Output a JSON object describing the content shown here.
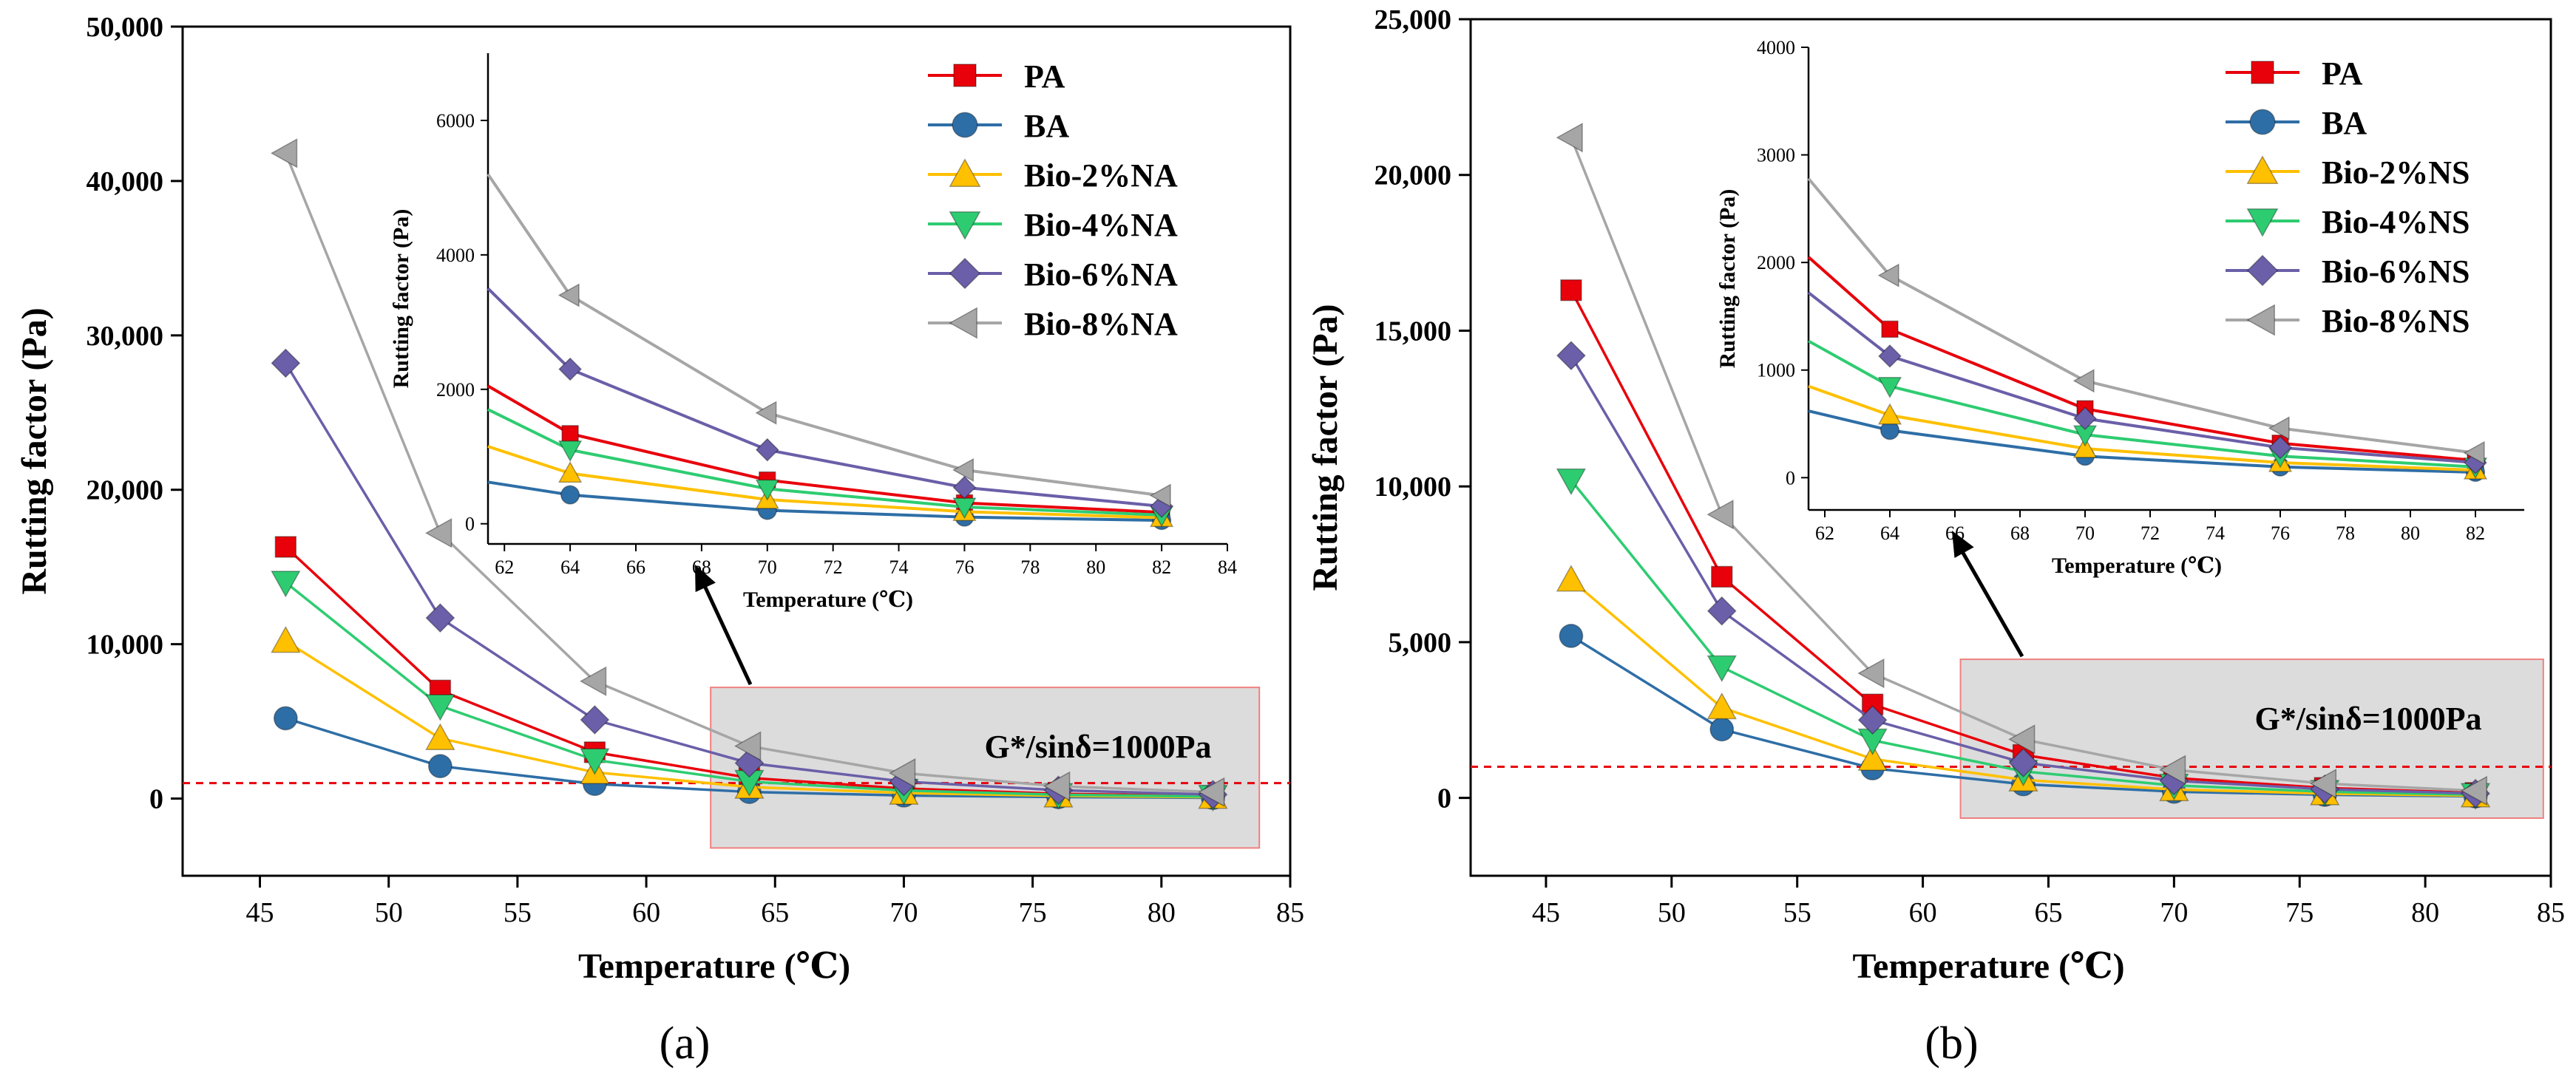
{
  "chart_data": [
    {
      "type": "line",
      "panel_label": "(a)",
      "xlabel": "Temperature (℃)",
      "ylabel": "Rutting factor (Pa)",
      "xlim": [
        42,
        85
      ],
      "ylim": [
        -5000,
        50000
      ],
      "xticks": [
        45,
        50,
        55,
        60,
        65,
        70,
        75,
        80,
        85
      ],
      "yticks": [
        0,
        10000,
        20000,
        30000,
        40000,
        50000
      ],
      "yticklabels": [
        "0",
        "10,000",
        "20,000",
        "30,000",
        "40,000",
        "50,000"
      ],
      "x": [
        46,
        52,
        58,
        64,
        70,
        76,
        82
      ],
      "threshold": {
        "value": 1000,
        "label": "G*/sinδ=1000Pa",
        "color": "#e8000b"
      },
      "highlight_box": {
        "x_range": [
          62.5,
          83.8
        ],
        "y_range": [
          -3200,
          7200
        ]
      },
      "series": [
        {
          "name": "PA",
          "color": "#e8000b",
          "marker": "square",
          "values": [
            16300,
            7000,
            3000,
            1340,
            650,
            310,
            170
          ]
        },
        {
          "name": "BA",
          "color": "#2e6ea6",
          "marker": "circle",
          "values": [
            5200,
            2100,
            950,
            430,
            200,
            100,
            50
          ]
        },
        {
          "name": "Bio-2%NA",
          "color": "#ffc000",
          "marker": "triangle-up",
          "values": [
            10200,
            3900,
            1700,
            750,
            360,
            180,
            90
          ]
        },
        {
          "name": "Bio-4%NA",
          "color": "#2ecc71",
          "marker": "triangle-down",
          "values": [
            14000,
            6000,
            2500,
            1100,
            520,
            250,
            130
          ]
        },
        {
          "name": "Bio-6%NA",
          "color": "#6a5fa8",
          "marker": "diamond",
          "values": [
            28200,
            11700,
            5100,
            2300,
            1100,
            540,
            260
          ]
        },
        {
          "name": "Bio-8%NA",
          "color": "#a6a6a6",
          "marker": "triangle-left",
          "values": [
            41800,
            17200,
            7600,
            3400,
            1650,
            800,
            420
          ]
        }
      ],
      "inset": {
        "xlabel": "Temperature (℃)",
        "ylabel": "Rutting factor (Pa)",
        "xlim": [
          61.5,
          84
        ],
        "ylim": [
          -300,
          7000
        ],
        "xticks": [
          62,
          64,
          66,
          68,
          70,
          72,
          74,
          76,
          78,
          80,
          82,
          84
        ],
        "yticks": [
          0,
          2000,
          4000,
          6000
        ],
        "x": [
          61.5,
          64,
          70,
          76,
          82
        ],
        "series": [
          {
            "name": "PA",
            "values": [
              2050,
              1340,
              650,
              310,
              170
            ]
          },
          {
            "name": "BA",
            "values": [
              620,
              430,
              200,
              100,
              50
            ]
          },
          {
            "name": "Bio-2%NA",
            "values": [
              1150,
              750,
              360,
              180,
              90
            ]
          },
          {
            "name": "Bio-4%NA",
            "values": [
              1700,
              1100,
              520,
              250,
              130
            ]
          },
          {
            "name": "Bio-6%NA",
            "values": [
              3500,
              2300,
              1100,
              540,
              260
            ]
          },
          {
            "name": "Bio-8%NA",
            "values": [
              5200,
              3400,
              1650,
              800,
              420
            ]
          }
        ]
      }
    },
    {
      "type": "line",
      "panel_label": "(b)",
      "xlabel": "Temperature (℃)",
      "ylabel": "Rutting factor (Pa)",
      "xlim": [
        42,
        85
      ],
      "ylim": [
        -2500,
        25000
      ],
      "xticks": [
        45,
        50,
        55,
        60,
        65,
        70,
        75,
        80,
        85
      ],
      "yticks": [
        0,
        5000,
        10000,
        15000,
        20000,
        25000
      ],
      "yticklabels": [
        "0",
        "5,000",
        "10,000",
        "15,000",
        "20,000",
        "25,000"
      ],
      "x": [
        46,
        52,
        58,
        64,
        70,
        76,
        82
      ],
      "threshold": {
        "value": 1000,
        "label": "G*/sinδ=1000Pa",
        "color": "#e8000b"
      },
      "highlight_box": {
        "x_range": [
          61.5,
          84.7
        ],
        "y_range": [
          -650,
          4450
        ]
      },
      "series": [
        {
          "name": "PA",
          "color": "#e8000b",
          "marker": "square",
          "values": [
            16300,
            7100,
            3000,
            1380,
            640,
            320,
            160
          ]
        },
        {
          "name": "BA",
          "color": "#2e6ea6",
          "marker": "circle",
          "values": [
            5200,
            2200,
            950,
            440,
            200,
            100,
            50
          ]
        },
        {
          "name": "Bio-2%NS",
          "color": "#ffc000",
          "marker": "triangle-up",
          "values": [
            7000,
            2900,
            1250,
            580,
            270,
            140,
            70
          ]
        },
        {
          "name": "Bio-4%NS",
          "color": "#2ecc71",
          "marker": "triangle-down",
          "values": [
            10200,
            4200,
            1850,
            850,
            400,
            200,
            100
          ]
        },
        {
          "name": "Bio-6%NS",
          "color": "#6a5fa8",
          "marker": "diamond",
          "values": [
            14200,
            6000,
            2500,
            1130,
            550,
            280,
            140
          ]
        },
        {
          "name": "Bio-8%NS",
          "color": "#a6a6a6",
          "marker": "triangle-left",
          "values": [
            21200,
            9100,
            4000,
            1880,
            900,
            460,
            230
          ]
        }
      ],
      "inset": {
        "xlabel": "Temperature (℃)",
        "ylabel": "Rutting factor (Pa)",
        "xlim": [
          61.5,
          83.5
        ],
        "ylim": [
          -300,
          4000
        ],
        "xticks": [
          62,
          64,
          66,
          68,
          70,
          72,
          74,
          76,
          78,
          80,
          82
        ],
        "yticks": [
          0,
          1000,
          2000,
          3000,
          4000
        ],
        "x": [
          61.5,
          64,
          70,
          76,
          82
        ],
        "series": [
          {
            "name": "PA",
            "values": [
              2050,
              1380,
              640,
              320,
              160
            ]
          },
          {
            "name": "BA",
            "values": [
              620,
              440,
              200,
              100,
              50
            ]
          },
          {
            "name": "Bio-2%NS",
            "values": [
              850,
              580,
              270,
              140,
              70
            ]
          },
          {
            "name": "Bio-4%NS",
            "values": [
              1270,
              850,
              400,
              200,
              100
            ]
          },
          {
            "name": "Bio-6%NS",
            "values": [
              1720,
              1130,
              550,
              280,
              140
            ]
          },
          {
            "name": "Bio-8%NS",
            "values": [
              2780,
              1880,
              900,
              460,
              230
            ]
          }
        ]
      }
    }
  ]
}
